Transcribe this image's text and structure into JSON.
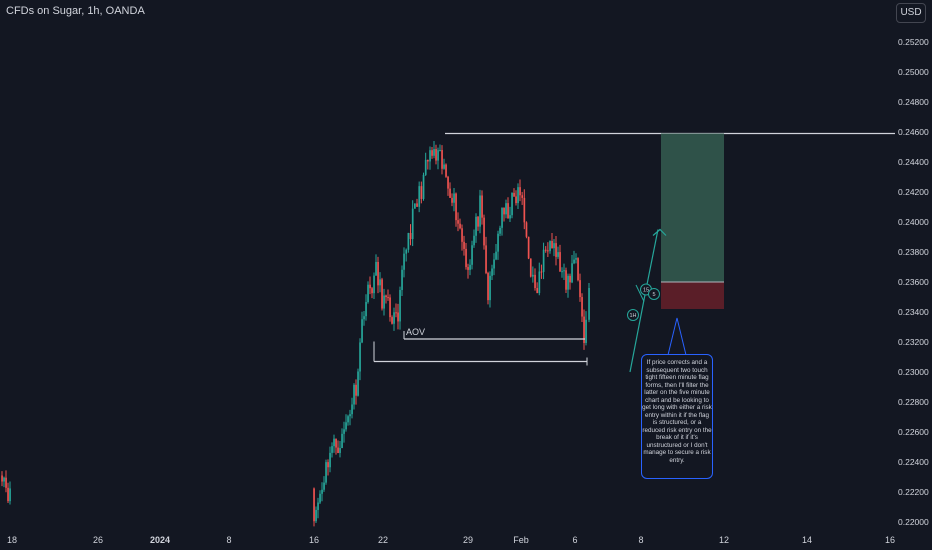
{
  "header": {
    "symbol": "CFDs on Sugar, 1h, OANDA",
    "currency": "USD"
  },
  "note": {
    "text": "If price corrects and a subsequent two touch tight fifteen minute flag forms, then I'll filter the latter on the five minute chart and be looking to get long with either a risk entry within it if the flag is structured, or a reduced risk entry on the break of it if it's unstructured or I don't manage to secure a risk entry."
  },
  "annotations": {
    "aov_label": "AOV",
    "badge_1h": "1H",
    "badge_15": "15",
    "badge_5": "5"
  },
  "colors": {
    "background": "#131722",
    "up": "#26a69a",
    "down": "#ef5350",
    "target_zone": "#2f5249",
    "stop_zone": "#5a1e28",
    "line": "#d1d4dc",
    "note_border": "#2962ff",
    "badge": "#26a69a"
  },
  "chart_data": {
    "type": "candlestick",
    "y_axis": {
      "ticks": [
        0.252,
        0.25,
        0.248,
        0.246,
        0.244,
        0.242,
        0.24,
        0.238,
        0.236,
        0.234,
        0.232,
        0.23,
        0.228,
        0.226,
        0.224,
        0.222,
        0.22
      ],
      "tick_labels": [
        "0.25200",
        "0.25000",
        "0.24800",
        "0.24600",
        "0.24400",
        "0.24200",
        "0.24000",
        "0.23800",
        "0.23600",
        "0.23400",
        "0.23200",
        "0.23000",
        "0.22800",
        "0.22600",
        "0.22400",
        "0.22200",
        "0.22000"
      ],
      "range": [
        0.2193,
        0.2536
      ]
    },
    "x_axis": {
      "tick_labels": [
        "18",
        "26",
        "2024",
        "8",
        "16",
        "22",
        "29",
        "Feb",
        "6",
        "8",
        "12",
        "14",
        "16"
      ]
    },
    "price_path": [
      [
        "Dec 18",
        0.2235
      ],
      [
        "Dec 19",
        0.2212
      ],
      [
        "Jan 16",
        0.2202
      ],
      [
        "Jan 18",
        0.2248
      ],
      [
        "Jan 19",
        0.2255
      ],
      [
        "Jan 20",
        0.2292
      ],
      [
        "Jan 21",
        0.2345
      ],
      [
        "Jan 22",
        0.2366
      ],
      [
        "Jan 23",
        0.235
      ],
      [
        "Jan 24",
        0.233
      ],
      [
        "Jan 25",
        0.238
      ],
      [
        "Jan 26",
        0.2445
      ],
      [
        "Jan 27",
        0.244
      ],
      [
        "Jan 28",
        0.242
      ],
      [
        "Jan 29",
        0.237
      ],
      [
        "Jan 30",
        0.241
      ],
      [
        "Jan 31",
        0.235
      ],
      [
        "Feb 1",
        0.24
      ],
      [
        "Feb 2",
        0.242
      ],
      [
        "Feb 3",
        0.235
      ],
      [
        "Feb 4",
        0.2395
      ],
      [
        "Feb 5",
        0.2355
      ],
      [
        "Feb 6",
        0.238
      ],
      [
        "Feb 6",
        0.232
      ],
      [
        "Feb 7",
        0.2356
      ]
    ],
    "levels": [
      {
        "name": "resistance",
        "price": 0.2459
      },
      {
        "name": "AOV",
        "price": 0.2322
      },
      {
        "name": "support",
        "price": 0.2307
      }
    ],
    "position": {
      "direction": "long",
      "entry": 0.236,
      "stop": 0.2342,
      "target": 0.2459
    },
    "projected_path": [
      [
        "Feb 7",
        0.23
      ],
      [
        "Feb 8",
        0.2355
      ],
      [
        "Feb 9",
        0.2395
      ]
    ]
  }
}
